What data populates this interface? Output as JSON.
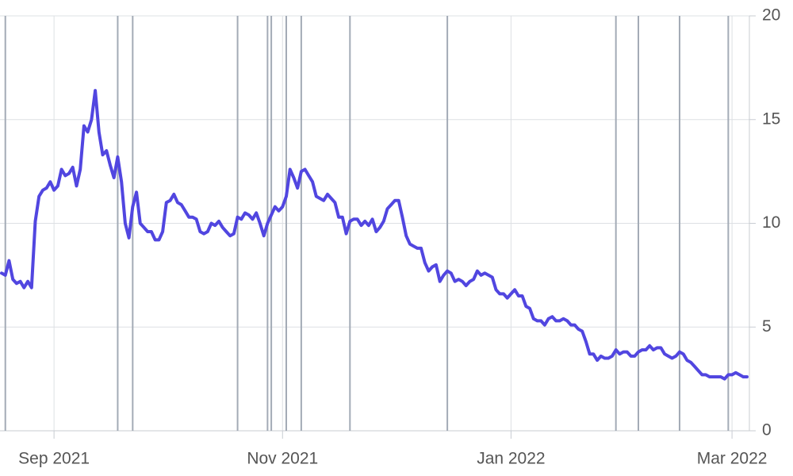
{
  "chart_data": {
    "type": "line",
    "categories": [
      null,
      null,
      null,
      null,
      null,
      null,
      null,
      null,
      null,
      null,
      null,
      null,
      null,
      null,
      "Sep 2021",
      null,
      null,
      null,
      null,
      null,
      null,
      null,
      null,
      null,
      null,
      null,
      null,
      null,
      null,
      null,
      null,
      null,
      null,
      null,
      null,
      null,
      null,
      null,
      null,
      null,
      null,
      null,
      null,
      null,
      null,
      null,
      null,
      null,
      null,
      null,
      null,
      null,
      null,
      null,
      null,
      null,
      null,
      null,
      null,
      null,
      null,
      null,
      null,
      null,
      null,
      null,
      null,
      null,
      null,
      null,
      null,
      null,
      null,
      null,
      null,
      "Nov 2021",
      null,
      null,
      null,
      null,
      null,
      null,
      null,
      null,
      null,
      null,
      null,
      null,
      null,
      null,
      null,
      null,
      null,
      null,
      null,
      null,
      null,
      null,
      null,
      null,
      null,
      null,
      null,
      null,
      null,
      null,
      null,
      null,
      null,
      null,
      null,
      null,
      null,
      null,
      null,
      null,
      null,
      null,
      null,
      null,
      null,
      null,
      null,
      null,
      null,
      null,
      null,
      null,
      null,
      null,
      null,
      null,
      null,
      null,
      null,
      null,
      "Jan 2022",
      null,
      null,
      null,
      null,
      null,
      null,
      null,
      null,
      null,
      null,
      null,
      null,
      null,
      null,
      null,
      null,
      null,
      null,
      null,
      null,
      null,
      null,
      null,
      null,
      null,
      null,
      null,
      null,
      null,
      null,
      null,
      null,
      null,
      null,
      null,
      null,
      null,
      null,
      null,
      null,
      null,
      null,
      null,
      null,
      null,
      null,
      null,
      null,
      null,
      null,
      null,
      null,
      null,
      null,
      null,
      null,
      null,
      null,
      "Mar 2022",
      null,
      null,
      null,
      null
    ],
    "series": [
      {
        "color": "#5146e0",
        "values": [
          7.6,
          7.5,
          8.2,
          7.3,
          7.1,
          7.2,
          6.9,
          7.2,
          6.9,
          10.1,
          11.3,
          11.6,
          11.7,
          12.0,
          11.6,
          11.8,
          12.6,
          12.3,
          12.4,
          12.7,
          11.8,
          12.6,
          14.7,
          14.4,
          15.0,
          16.4,
          14.4,
          13.3,
          13.5,
          12.8,
          12.2,
          13.2,
          12.0,
          10.0,
          9.3,
          10.8,
          11.5,
          10.0,
          9.8,
          9.6,
          9.6,
          9.2,
          9.2,
          9.6,
          11.0,
          11.1,
          11.4,
          11.0,
          10.9,
          10.6,
          10.3,
          10.3,
          10.2,
          9.6,
          9.5,
          9.6,
          10.0,
          9.9,
          10.1,
          9.8,
          9.6,
          9.4,
          9.5,
          10.3,
          10.2,
          10.5,
          10.4,
          10.2,
          10.5,
          10.0,
          9.4,
          10.0,
          10.4,
          10.8,
          10.6,
          10.8,
          11.3,
          12.6,
          12.2,
          11.7,
          12.5,
          12.6,
          12.3,
          12.0,
          11.3,
          11.2,
          11.1,
          11.4,
          11.2,
          11.0,
          10.3,
          10.3,
          9.5,
          10.1,
          10.2,
          10.2,
          9.9,
          10.1,
          9.9,
          10.2,
          9.6,
          9.8,
          10.1,
          10.7,
          10.9,
          11.1,
          11.1,
          10.3,
          9.4,
          9.0,
          8.9,
          8.8,
          8.8,
          8.1,
          7.7,
          7.9,
          8.0,
          7.2,
          7.5,
          7.7,
          7.6,
          7.2,
          7.3,
          7.2,
          7.0,
          7.2,
          7.3,
          7.7,
          7.5,
          7.6,
          7.5,
          7.4,
          6.8,
          6.6,
          6.6,
          6.4,
          6.6,
          6.8,
          6.5,
          6.5,
          6.0,
          5.9,
          5.4,
          5.3,
          5.3,
          5.1,
          5.4,
          5.5,
          5.3,
          5.3,
          5.4,
          5.3,
          5.1,
          5.1,
          4.9,
          4.8,
          4.3,
          3.7,
          3.7,
          3.4,
          3.6,
          3.5,
          3.5,
          3.6,
          3.9,
          3.7,
          3.8,
          3.8,
          3.6,
          3.6,
          3.8,
          3.9,
          3.9,
          4.1,
          3.9,
          4.0,
          4.0,
          3.7,
          3.6,
          3.5,
          3.6,
          3.8,
          3.7,
          3.4,
          3.3,
          3.1,
          2.9,
          2.7,
          2.7,
          2.6,
          2.6,
          2.6,
          2.6,
          2.5,
          2.7,
          2.7,
          2.8,
          2.7,
          2.6,
          2.6
        ]
      }
    ],
    "event_lines": [
      1,
      31,
      35,
      63,
      71,
      72,
      76,
      80,
      93,
      119,
      164,
      170,
      181,
      194
    ],
    "ylim": [
      0,
      20
    ],
    "yticks": [
      0,
      5,
      10,
      15,
      20
    ],
    "grid": true
  }
}
